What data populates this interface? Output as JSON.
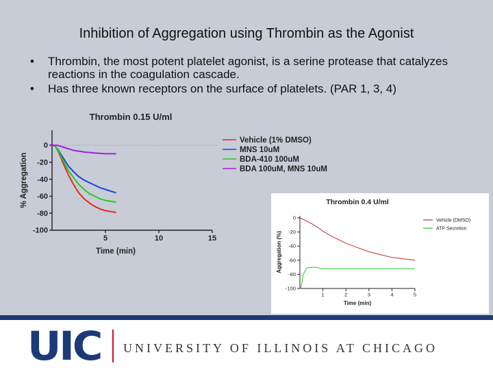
{
  "slide": {
    "title": "Inhibition of Aggregation using Thrombin as the Agonist",
    "bullets": [
      "Thrombin, the most potent platelet agonist, is a serine protease that catalyzes reactions in the coagulation cascade.",
      "Has three known receptors on the surface of platelets. (PAR 1, 3, 4)"
    ]
  },
  "footer": {
    "logo": "UIC",
    "university": "UNIVERSITY OF ILLINOIS AT CHICAGO",
    "colors": {
      "navy": "#1d3a78",
      "red": "#c8102e"
    }
  },
  "chart_data": [
    {
      "type": "line",
      "title": "Thrombin 0.15 U/ml",
      "xlabel": "Time (min)",
      "ylabel": "% Aggregation",
      "xlim": [
        0,
        15
      ],
      "ylim": [
        -100,
        0
      ],
      "xticks": [
        5,
        10,
        15
      ],
      "yticks": [
        0,
        -20,
        -40,
        -60,
        -80,
        -100
      ],
      "legend_position": "right",
      "grid": false,
      "series": [
        {
          "name": "Vehicle (1% DMSO)",
          "color": "#e8281e",
          "x": [
            0,
            0.3,
            0.6,
            1,
            1.5,
            2,
            2.5,
            3,
            3.5,
            4,
            4.5,
            5,
            5.5,
            6
          ],
          "y": [
            0,
            -1,
            -8,
            -20,
            -34,
            -46,
            -56,
            -63,
            -68,
            -72,
            -75,
            -77,
            -78,
            -79
          ]
        },
        {
          "name": "MNS 10uM",
          "color": "#2244dd",
          "x": [
            0,
            0.3,
            0.6,
            1,
            1.5,
            2,
            2.5,
            3,
            3.5,
            4,
            4.5,
            5,
            5.5,
            6
          ],
          "y": [
            0,
            -1,
            -6,
            -14,
            -24,
            -31,
            -37,
            -41,
            -44,
            -47,
            -50,
            -52,
            -54,
            -56
          ]
        },
        {
          "name": "BDA-410 100uM",
          "color": "#22cc22",
          "x": [
            0,
            0.3,
            0.6,
            1,
            1.5,
            2,
            2.5,
            3,
            3.5,
            4,
            4.5,
            5,
            5.5,
            6
          ],
          "y": [
            0,
            -1,
            -7,
            -17,
            -29,
            -38,
            -46,
            -52,
            -57,
            -60,
            -63,
            -65,
            -66,
            -67
          ]
        },
        {
          "name": "BDA 100uM, MNS 10uM",
          "color": "#a020e0",
          "x": [
            0,
            0.5,
            1,
            1.5,
            2,
            3,
            4,
            5,
            6
          ],
          "y": [
            0,
            0,
            -2,
            -4,
            -6,
            -8,
            -9,
            -10,
            -10
          ]
        }
      ]
    },
    {
      "type": "line",
      "title": "Thrombin 0.4 U/ml",
      "xlabel": "Time (min)",
      "ylabel": "Aggregation (%)",
      "xlim": [
        0,
        5
      ],
      "ylim": [
        -100,
        0
      ],
      "xticks": [
        1,
        2,
        3,
        4,
        5
      ],
      "yticks": [
        0,
        -20,
        -40,
        -60,
        -80,
        -100
      ],
      "legend_position": "top-right",
      "grid": false,
      "series": [
        {
          "name": "Vehicle (DMSO)",
          "color": "#c0282a",
          "x": [
            0,
            0.2,
            0.5,
            0.8,
            1,
            1.5,
            2,
            2.5,
            3,
            3.5,
            4,
            4.5,
            5
          ],
          "y": [
            0,
            -3,
            -8,
            -14,
            -19,
            -28,
            -36,
            -42,
            -48,
            -52,
            -56,
            -58,
            -60
          ]
        },
        {
          "name": "ATP Secretion",
          "color": "#22cc22",
          "x": [
            0,
            0.05,
            0.15,
            0.3,
            0.5,
            0.7,
            1,
            1.5,
            2,
            3,
            4,
            5
          ],
          "y": [
            -100,
            -98,
            -80,
            -71,
            -70,
            -70,
            -72,
            -72,
            -72,
            -72,
            -72,
            -72
          ]
        }
      ]
    }
  ]
}
